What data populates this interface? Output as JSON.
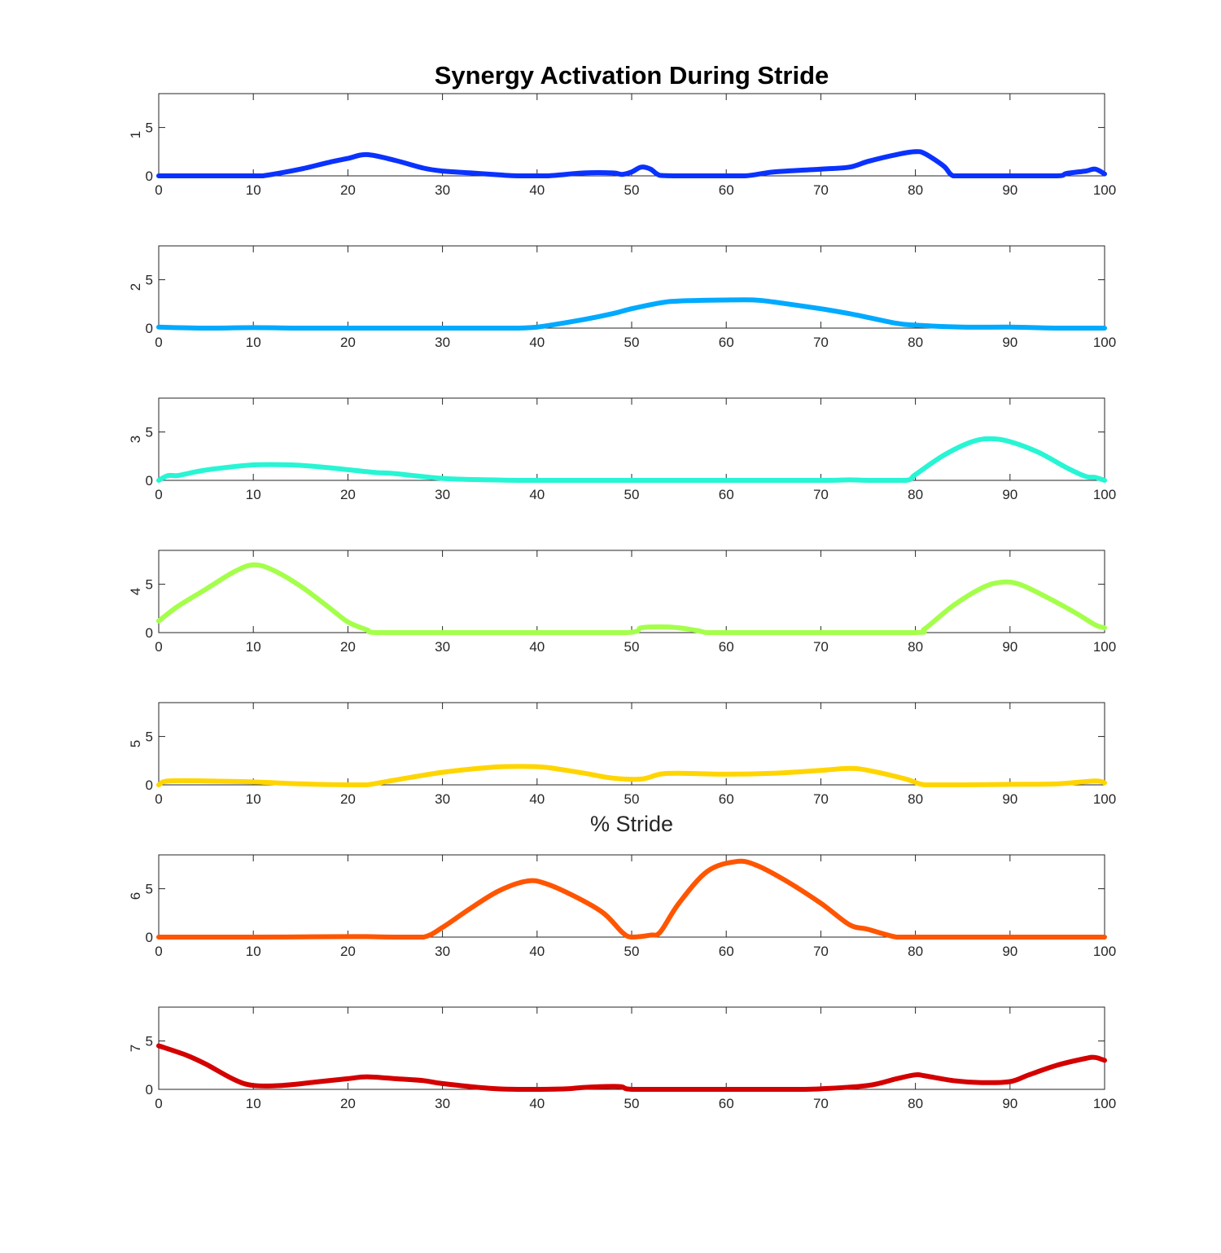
{
  "chart_data": {
    "type": "line",
    "title": "Synergy Activation During Stride",
    "xlabel": "% Stride",
    "xlim": [
      0,
      100
    ],
    "xticks": [
      0,
      10,
      20,
      30,
      40,
      50,
      60,
      70,
      80,
      90,
      100
    ],
    "ylim": [
      0,
      8.5
    ],
    "yticks": [
      0,
      5
    ],
    "grid": false,
    "panels": [
      {
        "ylabel": "1",
        "color": "#0a32ff",
        "x": [
          0,
          5,
          10,
          11,
          15,
          18,
          20,
          22,
          25,
          28,
          30,
          33,
          36,
          38,
          41,
          45,
          48,
          49,
          50,
          51,
          52,
          53,
          55,
          58,
          62,
          65,
          70,
          73,
          75,
          78,
          80,
          81,
          83,
          84,
          86,
          90,
          95,
          96,
          98,
          99,
          100
        ],
        "y": [
          0,
          0,
          0,
          0,
          0.7,
          1.4,
          1.8,
          2.2,
          1.6,
          0.8,
          0.5,
          0.3,
          0.1,
          0,
          0,
          0.3,
          0.3,
          0.15,
          0.4,
          0.9,
          0.7,
          0.05,
          0,
          0,
          0,
          0.4,
          0.7,
          0.9,
          1.5,
          2.2,
          2.5,
          2.3,
          1.0,
          0,
          0,
          0,
          0,
          0.25,
          0.5,
          0.7,
          0.2
        ]
      },
      {
        "ylabel": "2",
        "color": "#00aaff",
        "x": [
          0,
          5,
          10,
          15,
          20,
          25,
          30,
          35,
          38,
          40,
          45,
          48,
          50,
          53,
          55,
          60,
          63,
          65,
          70,
          73,
          75,
          78,
          80,
          85,
          90,
          95,
          100
        ],
        "y": [
          0.1,
          0,
          0.05,
          0,
          0,
          0,
          0,
          0,
          0,
          0.1,
          0.9,
          1.5,
          2.0,
          2.6,
          2.8,
          2.9,
          2.9,
          2.7,
          2.0,
          1.5,
          1.1,
          0.5,
          0.3,
          0.1,
          0.1,
          0,
          0
        ]
      },
      {
        "ylabel": "3",
        "color": "#27f5d4",
        "x": [
          0,
          1,
          2,
          4,
          6,
          10,
          14,
          17,
          20,
          23,
          25,
          30,
          35,
          38,
          40,
          50,
          60,
          70,
          73,
          75,
          79,
          80,
          83,
          86,
          88,
          90,
          93,
          96,
          98,
          99,
          100
        ],
        "y": [
          0,
          0.5,
          0.5,
          0.9,
          1.2,
          1.6,
          1.6,
          1.4,
          1.1,
          0.8,
          0.7,
          0.2,
          0.05,
          0,
          0,
          0,
          0,
          0,
          0.05,
          0,
          0,
          0.6,
          2.6,
          4.0,
          4.3,
          4.0,
          2.9,
          1.3,
          0.4,
          0.3,
          0
        ]
      },
      {
        "ylabel": "4",
        "color": "#a4ff4b",
        "x": [
          0,
          2,
          5,
          8,
          10,
          12,
          15,
          18,
          20,
          22,
          23,
          30,
          40,
          49.5,
          51,
          53,
          55,
          57,
          58,
          60,
          70,
          80,
          81,
          84,
          87,
          89,
          91,
          94,
          97,
          99,
          100
        ],
        "y": [
          1.2,
          2.7,
          4.5,
          6.3,
          7.0,
          6.5,
          4.8,
          2.6,
          1.1,
          0.3,
          0,
          0,
          0,
          0,
          0.5,
          0.6,
          0.5,
          0.2,
          0,
          0,
          0,
          0,
          0.4,
          2.8,
          4.6,
          5.2,
          5.0,
          3.6,
          2.0,
          0.8,
          0.5
        ]
      },
      {
        "ylabel": "5",
        "color": "#ffd500",
        "x": [
          0,
          1,
          5,
          10,
          15,
          20,
          22,
          25,
          30,
          35,
          38,
          41,
          45,
          48,
          51,
          53,
          55,
          60,
          65,
          70,
          73,
          75,
          79,
          81,
          85,
          90,
          95,
          99,
          100
        ],
        "y": [
          0,
          0.4,
          0.4,
          0.3,
          0.1,
          0,
          0,
          0.5,
          1.3,
          1.8,
          1.9,
          1.8,
          1.2,
          0.7,
          0.6,
          1.1,
          1.2,
          1.1,
          1.2,
          1.5,
          1.7,
          1.5,
          0.6,
          0,
          0,
          0.05,
          0.1,
          0.4,
          0.2
        ]
      },
      {
        "ylabel": "6",
        "color": "#ff5500",
        "x": [
          0,
          10,
          20,
          22,
          25,
          28,
          30,
          33,
          36,
          39,
          41,
          44,
          47,
          49,
          50,
          52,
          53,
          55,
          58,
          61,
          63,
          66,
          70,
          73,
          75,
          78,
          80,
          90,
          100
        ],
        "y": [
          0,
          0,
          0.05,
          0.05,
          0,
          0,
          1.0,
          3.0,
          4.8,
          5.8,
          5.5,
          4.2,
          2.5,
          0.5,
          0,
          0.2,
          0.5,
          3.5,
          6.8,
          7.8,
          7.5,
          6.0,
          3.5,
          1.3,
          0.8,
          0,
          0,
          0,
          0
        ]
      },
      {
        "ylabel": "7",
        "color": "#d40000",
        "x": [
          0,
          3,
          5,
          8,
          10,
          13,
          17,
          20,
          22,
          25,
          28,
          30,
          35,
          38,
          40,
          43,
          45,
          48,
          49,
          50,
          55,
          60,
          65,
          68,
          70,
          75,
          78,
          80,
          81,
          84,
          87,
          90,
          92,
          95,
          98,
          99,
          100
        ],
        "y": [
          4.5,
          3.5,
          2.6,
          1.0,
          0.4,
          0.4,
          0.8,
          1.1,
          1.3,
          1.1,
          0.9,
          0.6,
          0.1,
          0,
          0,
          0.05,
          0.2,
          0.3,
          0.25,
          0,
          0,
          0,
          0,
          0,
          0.05,
          0.4,
          1.1,
          1.5,
          1.4,
          0.9,
          0.7,
          0.8,
          1.5,
          2.5,
          3.2,
          3.3,
          3.0
        ]
      }
    ]
  }
}
